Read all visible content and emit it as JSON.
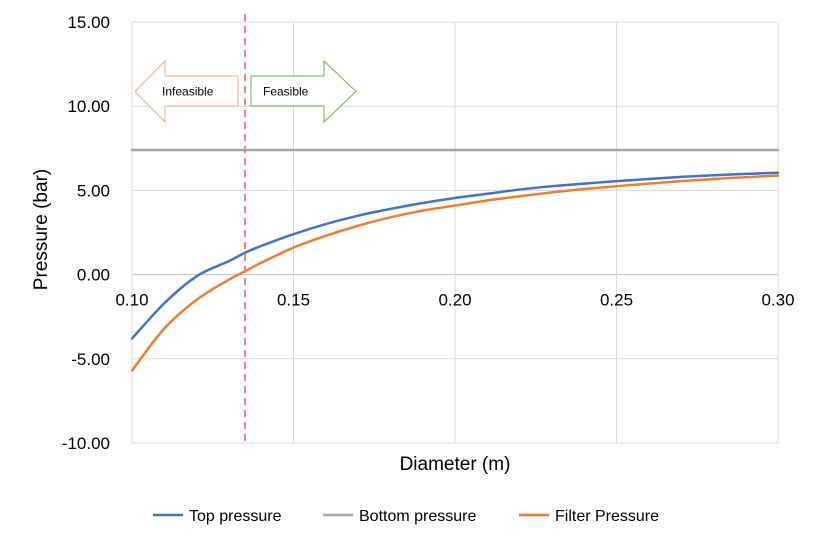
{
  "chart_data": {
    "type": "line",
    "xlabel": "Diameter (m)",
    "ylabel": "Pressure (bar)",
    "xlim": [
      0.1,
      0.3
    ],
    "ylim": [
      -10.0,
      15.0
    ],
    "x_ticks": [
      0.1,
      0.15,
      0.2,
      0.25,
      0.3
    ],
    "x_tick_labels": [
      "0.10",
      "0.15",
      "0.20",
      "0.25",
      "0.30"
    ],
    "y_ticks": [
      -10,
      -5,
      0,
      5,
      10,
      15
    ],
    "y_tick_labels": [
      "-10.00",
      "-5.00",
      "0.00",
      "5.00",
      "10.00",
      "15.00"
    ],
    "grid": true,
    "legend_position": "bottom",
    "series": [
      {
        "name": "Top pressure",
        "color": "#4472C4",
        "x": [
          0.1,
          0.11,
          0.12,
          0.13,
          0.135,
          0.14,
          0.15,
          0.16,
          0.17,
          0.18,
          0.19,
          0.2,
          0.21,
          0.22,
          0.23,
          0.24,
          0.25,
          0.26,
          0.27,
          0.28,
          0.29,
          0.3
        ],
        "y": [
          -3.8,
          -1.7,
          -0.1,
          0.8,
          1.3,
          1.7,
          2.4,
          3.0,
          3.5,
          3.9,
          4.25,
          4.55,
          4.8,
          5.05,
          5.25,
          5.4,
          5.55,
          5.68,
          5.8,
          5.9,
          5.98,
          6.05
        ]
      },
      {
        "name": "Bottom pressure",
        "color": "#A5A5A5",
        "x": [
          0.1,
          0.3
        ],
        "y": [
          7.4,
          7.4
        ]
      },
      {
        "name": "Filter Pressure",
        "color": "#ED7D31",
        "x": [
          0.1,
          0.11,
          0.12,
          0.13,
          0.135,
          0.14,
          0.15,
          0.16,
          0.17,
          0.18,
          0.19,
          0.2,
          0.21,
          0.22,
          0.23,
          0.24,
          0.25,
          0.26,
          0.27,
          0.28,
          0.29,
          0.3
        ],
        "y": [
          -5.7,
          -3.2,
          -1.5,
          -0.3,
          0.2,
          0.7,
          1.6,
          2.3,
          2.9,
          3.4,
          3.8,
          4.1,
          4.4,
          4.65,
          4.88,
          5.08,
          5.25,
          5.4,
          5.55,
          5.68,
          5.78,
          5.88
        ]
      }
    ],
    "annotations": {
      "threshold_x": 0.135,
      "threshold_color": "#FF7C80",
      "infeasible_label": "Infeasible",
      "infeasible_color": "#F4A98A",
      "feasible_label": "Feasible",
      "feasible_color": "#70AD47"
    }
  }
}
